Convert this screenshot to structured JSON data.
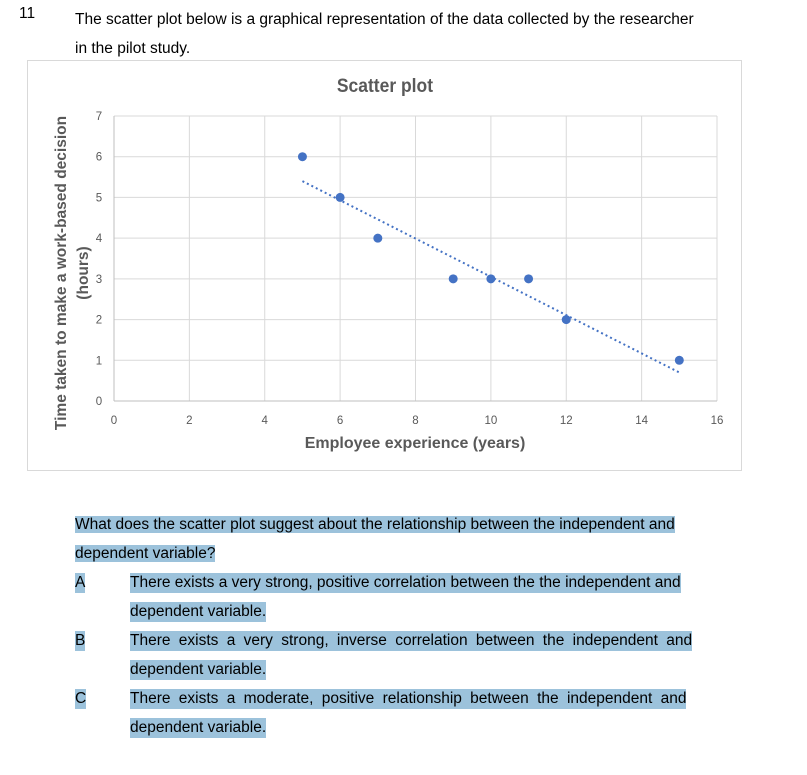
{
  "question": {
    "number": "11",
    "intro_line1": "The scatter plot below is a graphical representation of the data collected by the researcher",
    "intro_line2": "in the pilot study.",
    "prompt_line1": "What does the scatter plot suggest about the relationship between the independent and",
    "prompt_line2": "dependent variable?",
    "options": [
      {
        "letter": "A",
        "line1": "There exists a very strong, positive correlation between the the independent and",
        "line2": "dependent variable."
      },
      {
        "letter": "B",
        "line1": "There exists a very strong, inverse correlation between the independent and",
        "line2": "dependent variable."
      },
      {
        "letter": "C",
        "line1": "There exists a moderate, positive relationship between the independent and",
        "line2": "dependent variable."
      }
    ]
  },
  "colors": {
    "marker": "#4472C4",
    "gridline": "#d9d9d9",
    "highlight": "#9cc2db",
    "axis_text": "#595959"
  },
  "chart_data": {
    "type": "scatter",
    "title": "Scatter plot",
    "xlabel": "Employee experience (years)",
    "ylabel": "Time taken to make a work-based decision (hours)",
    "ylabel_line1": "Time taken to make a work-based decision",
    "ylabel_line2": "(hours)",
    "xlim": [
      0,
      16
    ],
    "ylim": [
      0,
      7
    ],
    "x_ticks": [
      "0",
      "2",
      "4",
      "6",
      "8",
      "10",
      "12",
      "14",
      "16"
    ],
    "y_ticks": [
      "0",
      "1",
      "2",
      "3",
      "4",
      "5",
      "6",
      "7"
    ],
    "grid": true,
    "legend": "none",
    "points": [
      {
        "x": 5,
        "y": 6
      },
      {
        "x": 6,
        "y": 5
      },
      {
        "x": 7,
        "y": 4
      },
      {
        "x": 9,
        "y": 3
      },
      {
        "x": 10,
        "y": 3
      },
      {
        "x": 11,
        "y": 3
      },
      {
        "x": 12,
        "y": 2
      },
      {
        "x": 15,
        "y": 1
      }
    ],
    "trendline": {
      "type": "linear",
      "style": "dotted",
      "x_start": 5,
      "y_start": 5.4,
      "x_end": 15,
      "y_end": 0.7
    }
  }
}
